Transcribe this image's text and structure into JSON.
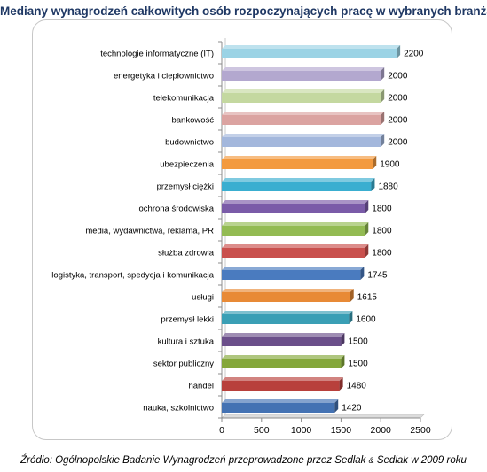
{
  "title": "Mediany wynagrodzeń całkowitych osób rozpoczynających pracę w wybranych branżach",
  "source": {
    "text_1": "Źródło: Ogólnopolskie Badanie Wynagrodzeń przeprowadzone przez Sedlak ",
    "amp": "&",
    "text_2": " Sedlak w 2009 roku"
  },
  "chart_data": {
    "type": "bar",
    "orientation": "horizontal",
    "title": "Mediany wynagrodzeń całkowitych osób rozpoczynających pracę w wybranych branżach",
    "xlabel": "",
    "ylabel": "",
    "xlim": [
      0,
      2500
    ],
    "x_ticks": [
      0,
      500,
      1000,
      1500,
      2000,
      2500
    ],
    "grid": false,
    "legend": "none",
    "categories": [
      "technologie informatyczne (IT)",
      "energetyka i ciepłownictwo",
      "telekomunikacja",
      "bankowość",
      "budownictwo",
      "ubezpieczenia",
      "przemysł ciężki",
      "ochrona środowiska",
      "media, wydawnictwa, reklama, PR",
      "służba zdrowia",
      "logistyka, transport, spedycja i komunikacja",
      "usługi",
      "przemysł lekki",
      "kultura i sztuka",
      "sektor publiczny",
      "handel",
      "nauka, szkolnictwo"
    ],
    "values": [
      2200,
      2000,
      2000,
      2000,
      2000,
      1900,
      1880,
      1800,
      1800,
      1800,
      1745,
      1615,
      1600,
      1500,
      1500,
      1480,
      1420
    ],
    "value_labels": [
      "2200",
      "2000",
      "2000",
      "2000",
      "2000",
      "1900",
      "1880",
      "1800",
      "1800",
      "1800",
      "1745",
      "1615",
      "1600",
      "1500",
      "1500",
      "1480",
      "1420"
    ],
    "colors": [
      "#9bd3e5",
      "#b3a8cf",
      "#c4d8a0",
      "#dba3a1",
      "#a3b7dc",
      "#f39a3f",
      "#3aaed0",
      "#7a5ba8",
      "#93bb53",
      "#c9504d",
      "#4a7bbf",
      "#e88a36",
      "#3a9fb5",
      "#6b4f8a",
      "#84a73a",
      "#b8403c",
      "#4472b3"
    ]
  }
}
